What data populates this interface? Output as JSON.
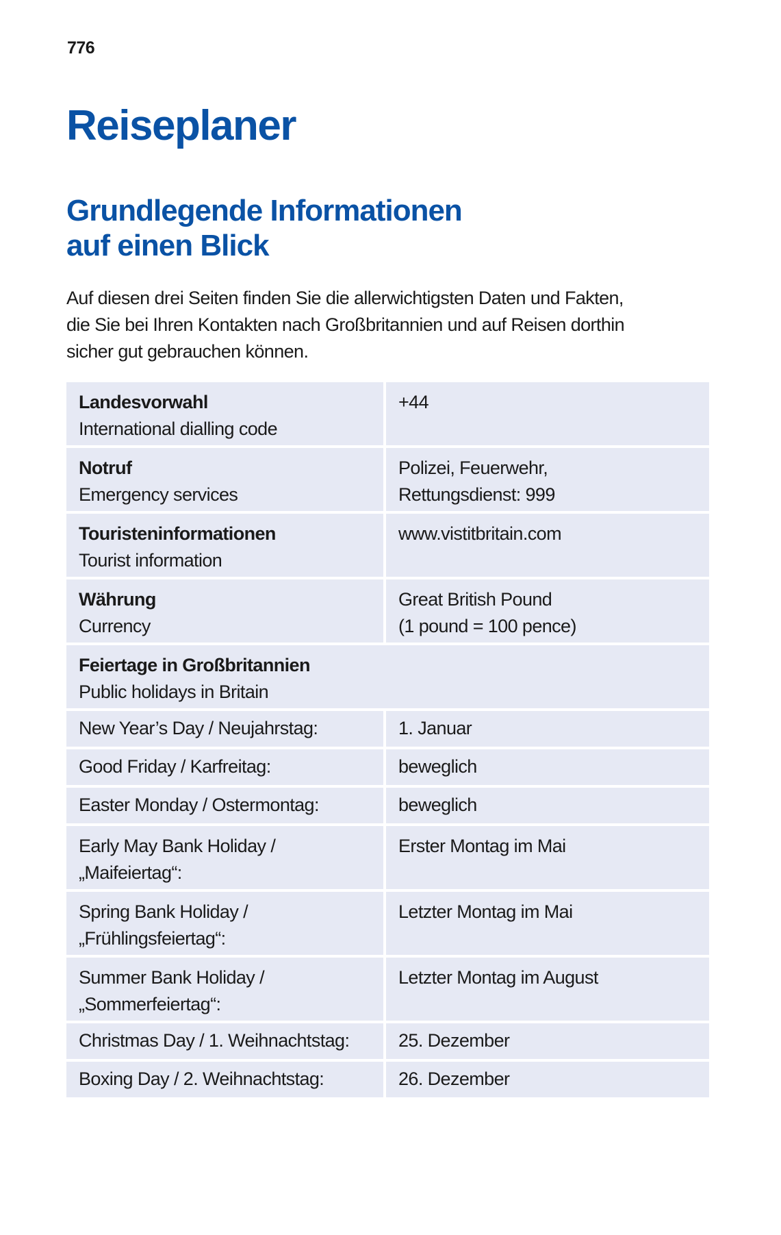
{
  "page_number": "776",
  "title": "Reiseplaner",
  "subtitle_lines": [
    "Grundlegende Informationen",
    "auf einen Blick"
  ],
  "intro_lines": [
    "Auf diesen drei Seiten finden Sie die allerwichtigsten Daten und Fakten,",
    "die Sie bei Ihren Kontakten nach Großbritannien und auf Reisen dorthin",
    "sicher gut gebrauchen können."
  ],
  "info_rows": [
    {
      "label_de": "Landesvorwahl",
      "label_en": "International dialling code",
      "value": [
        "+44"
      ]
    },
    {
      "label_de": "Notruf",
      "label_en": "Emergency services",
      "value": [
        "Polizei, Feuerwehr,",
        "Rettungsdienst: 999"
      ]
    },
    {
      "label_de": "Touristeninformationen",
      "label_en": "Tourist information",
      "value": [
        "www.vistitbritain.com"
      ]
    },
    {
      "label_de": "Währung",
      "label_en": "Currency",
      "value": [
        "Great British Pound",
        "(1 pound = 100 pence)"
      ]
    }
  ],
  "holidays_header": {
    "label_de": "Feiertage in Großbritannien",
    "label_en": "Public holidays in Britain"
  },
  "holidays": [
    {
      "name": [
        "New Year’s Day / Neujahrstag:"
      ],
      "date": "1. Januar"
    },
    {
      "name": [
        "Good Friday / Karfreitag:"
      ],
      "date": "beweglich"
    },
    {
      "name": [
        "Easter Monday / Ostermontag:"
      ],
      "date": "beweglich"
    },
    {
      "name": [
        "Early May Bank Holiday /",
        "„Maifeiertag“:"
      ],
      "date": "Erster Montag im Mai"
    },
    {
      "name": [
        "Spring Bank Holiday /",
        "„Frühlingsfeiertag“:"
      ],
      "date": "Letzter Montag im Mai"
    },
    {
      "name": [
        "Summer Bank Holiday /",
        "„Sommerfeiertag“:"
      ],
      "date": "Letzter Montag im August"
    },
    {
      "name": [
        "Christmas Day / 1. Weihnachtstag:"
      ],
      "date": "25. Dezember"
    },
    {
      "name": [
        "Boxing Day / 2. Weihnachtstag:"
      ],
      "date": "26. Dezember"
    }
  ],
  "colors": {
    "heading": "#0a52a5",
    "cell_bg": "#e6e9f4"
  }
}
